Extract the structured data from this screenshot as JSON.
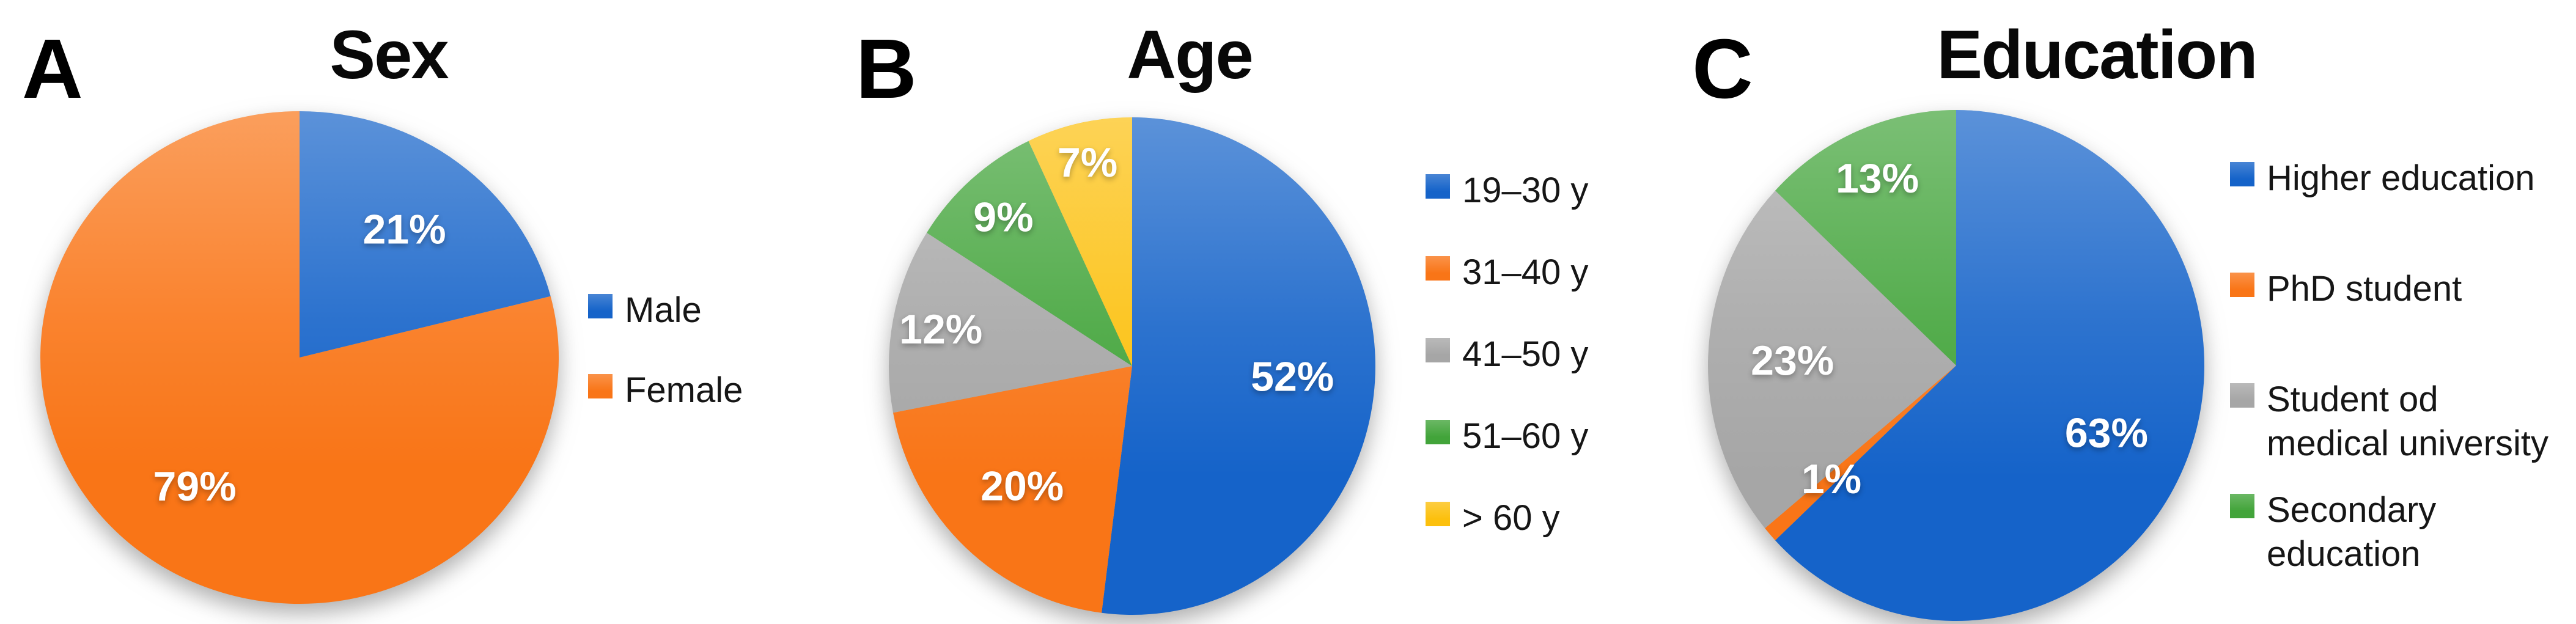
{
  "figure": {
    "background": "#FFFFFF",
    "description_texts": {
      "panel_a_letter": "A",
      "panel_b_letter": "B",
      "panel_c_letter": "C"
    }
  },
  "chart_data": [
    {
      "type": "pie",
      "panel_letter": "A",
      "title": "Sex",
      "start_angle_deg": 0,
      "direction": "clockwise",
      "legend_position": "right",
      "values_unit": "percent",
      "slices": [
        {
          "label": "Male",
          "value": 21,
          "data_label": "21%",
          "color": "#1563C9"
        },
        {
          "label": "Female",
          "value": 79,
          "data_label": "79%",
          "color": "#F97517"
        }
      ]
    },
    {
      "type": "pie",
      "panel_letter": "B",
      "title": "Age",
      "start_angle_deg": 0,
      "direction": "clockwise",
      "legend_position": "right",
      "values_unit": "percent",
      "slices": [
        {
          "label": "19–30 y",
          "value": 52,
          "data_label": "52%",
          "color": "#1563C9"
        },
        {
          "label": "31–40 y",
          "value": 20,
          "data_label": "20%",
          "color": "#F97517"
        },
        {
          "label": "41–50 y",
          "value": 12,
          "data_label": "12%",
          "color": "#A6A6A6"
        },
        {
          "label": "51–60 y",
          "value": 9,
          "data_label": "9%",
          "color": "#42A43A"
        },
        {
          "label": "> 60 y",
          "value": 7,
          "data_label": "7%",
          "color": "#FCC00D"
        }
      ]
    },
    {
      "type": "pie",
      "panel_letter": "C",
      "title": "Education",
      "start_angle_deg": 0,
      "direction": "clockwise",
      "legend_position": "right",
      "values_unit": "percent",
      "slices": [
        {
          "label": "Higher education",
          "value": 63,
          "data_label": "63%",
          "color": "#1563C9"
        },
        {
          "label": "PhD student",
          "value": 1,
          "data_label": "1%",
          "color": "#F97517"
        },
        {
          "label": "Student od medical university",
          "value": 23,
          "data_label": "23%",
          "color": "#A6A6A6"
        },
        {
          "label": "Secondary education",
          "value": 13,
          "data_label": "13%",
          "color": "#42A43A"
        }
      ]
    }
  ]
}
